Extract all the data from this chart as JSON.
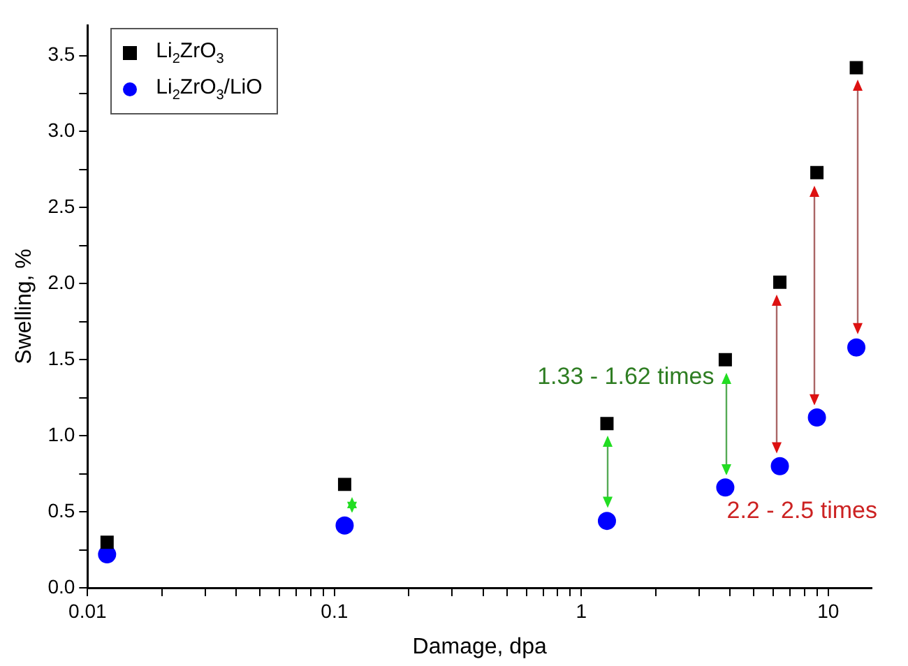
{
  "chart_data": {
    "type": "scatter",
    "xlabel": "Damage, dpa",
    "ylabel": "Swelling, %",
    "log": "x",
    "x": [
      0.012,
      0.11,
      1.27,
      3.83,
      6.37,
      9.0,
      13
    ],
    "series": [
      {
        "name": "Li$_{2}$ZrO$_{3}$",
        "color": "#000000",
        "marker": "square",
        "values": [
          0.3,
          0.68,
          1.08,
          1.5,
          2.01,
          2.73,
          3.42
        ]
      },
      {
        "name": "Li$_{2}$ZrO$_{3}$/LiO",
        "color": "#0000ff",
        "marker": "circle",
        "values": [
          0.22,
          0.41,
          0.44,
          0.66,
          0.8,
          1.12,
          1.58
        ]
      }
    ],
    "xlim": [
      0.01,
      15
    ],
    "xticks": [
      {
        "value": 0.01,
        "label": "0.01"
      },
      {
        "value": 0.02,
        "label": null
      },
      {
        "value": 0.03,
        "label": null
      },
      {
        "value": 0.04,
        "label": null
      },
      {
        "value": 0.05,
        "label": null
      },
      {
        "value": 0.06,
        "label": null
      },
      {
        "value": 0.07,
        "label": null
      },
      {
        "value": 0.08,
        "label": null
      },
      {
        "value": 0.09,
        "label": null
      },
      0.1,
      {
        "value": 0.2,
        "label": null
      },
      {
        "value": 0.3,
        "label": null
      },
      {
        "value": 0.4,
        "label": null
      },
      {
        "value": 0.5,
        "label": null
      },
      {
        "value": 0.6,
        "label": null
      },
      {
        "value": 0.7,
        "label": null
      },
      {
        "value": 0.8,
        "label": null
      },
      {
        "value": 0.9,
        "label": null
      },
      1,
      {
        "value": 2,
        "label": null
      },
      {
        "value": 3,
        "label": null
      },
      {
        "value": 4,
        "label": null
      },
      {
        "value": 5,
        "label": null
      },
      {
        "value": 6,
        "label": null
      },
      {
        "value": 7,
        "label": null
      },
      {
        "value": 8,
        "label": null
      },
      {
        "value": 9,
        "label": null
      },
      10
    ],
    "ylim": [
      0,
      3.7
    ],
    "yticks": [
      {
        "value": 0,
        "label": "0.0"
      },
      {
        "value": 0.25,
        "label": null
      },
      0.5,
      {
        "value": 0.75,
        "label": null
      },
      {
        "value": 1,
        "label": "1.0"
      },
      {
        "value": 1.25,
        "label": null
      },
      1.5,
      {
        "value": 1.75,
        "label": null
      },
      {
        "value": 2,
        "label": "2.0"
      },
      {
        "value": 2.25,
        "label": null
      },
      2.5,
      {
        "value": 2.75,
        "label": null
      },
      {
        "value": 3,
        "label": "3.0"
      },
      {
        "value": 3.25,
        "label": null
      },
      3.5
    ],
    "grid": false,
    "legend": "top left",
    "annotations": [
      "1.33 - 1.62 times",
      "2.2 - 2.5 times"
    ]
  }
}
